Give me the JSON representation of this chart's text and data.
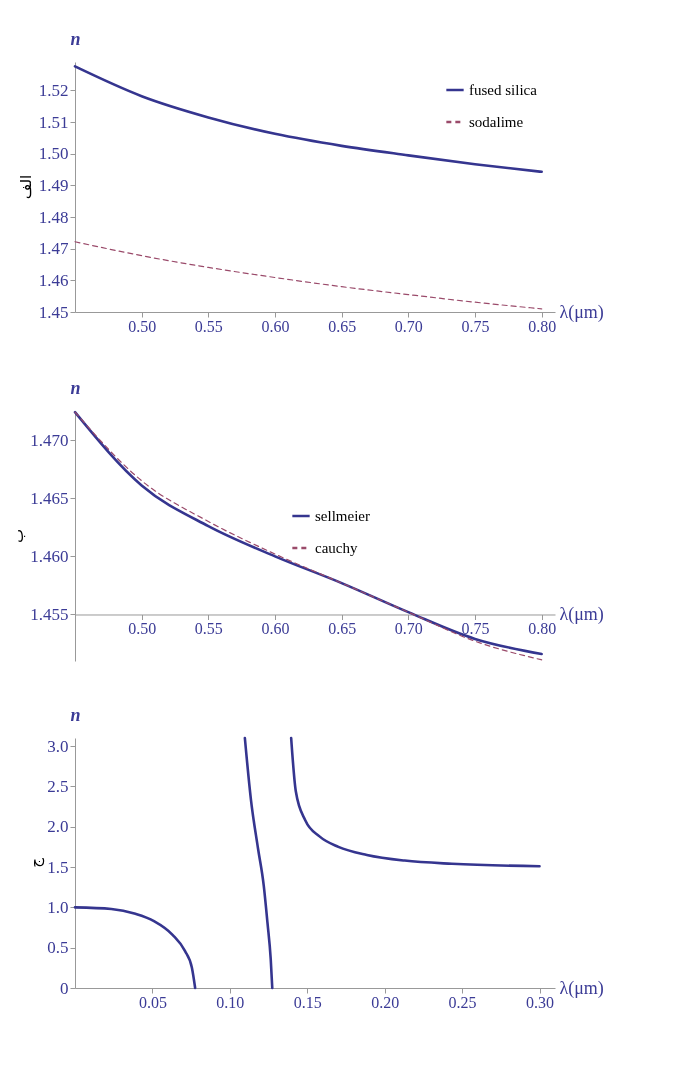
{
  "chart_data": [
    {
      "type": "line",
      "title": "الف",
      "xlabel": "λ(μm)",
      "ylabel": "n",
      "legend": "top right",
      "grid": false,
      "xlim": [
        0.45,
        0.81
      ],
      "ylim": [
        1.45,
        1.529
      ],
      "xticks": [
        {
          "value": 0.5,
          "label": "0.50"
        },
        {
          "value": 0.55,
          "label": "0.55"
        },
        {
          "value": 0.6,
          "label": "0.60"
        },
        {
          "value": 0.65,
          "label": "0.65"
        },
        {
          "value": 0.7,
          "label": "0.70"
        },
        {
          "value": 0.75,
          "label": "0.75"
        },
        {
          "value": 0.8,
          "label": "0.80"
        }
      ],
      "yticks": [
        {
          "value": 1.45,
          "label": "1.45"
        },
        {
          "value": 1.46,
          "label": "1.46"
        },
        {
          "value": 1.47,
          "label": "1.47"
        },
        {
          "value": 1.48,
          "label": "1.48"
        },
        {
          "value": 1.49,
          "label": "1.49"
        },
        {
          "value": 1.5,
          "label": "1.50"
        },
        {
          "value": 1.51,
          "label": "1.51"
        },
        {
          "value": 1.52,
          "label": "1.52"
        }
      ],
      "series": [
        {
          "name": "fused silica",
          "color": "#35358f",
          "line_style": "solid",
          "x": [
            0.45,
            0.5,
            0.55,
            0.6,
            0.65,
            0.7,
            0.75,
            0.8
          ],
          "values": [
            1.5276,
            1.5182,
            1.5115,
            1.5063,
            1.5025,
            1.4995,
            1.4967,
            1.4943
          ]
        },
        {
          "name": "sodalime",
          "color": "#9a4a6a",
          "line_style": "dashed",
          "x": [
            0.45,
            0.5,
            0.55,
            0.6,
            0.65,
            0.7,
            0.75,
            0.8
          ],
          "values": [
            1.4722,
            1.4678,
            1.4641,
            1.4609,
            1.458,
            1.4555,
            1.4531,
            1.451
          ]
        }
      ]
    },
    {
      "type": "line",
      "title": "ب",
      "xlabel": "λ(μm)",
      "ylabel": "n",
      "legend": "center",
      "grid": false,
      "xlim": [
        0.45,
        0.81
      ],
      "ylim": [
        1.451,
        1.4725
      ],
      "xticks": [
        {
          "value": 0.5,
          "label": "0.50"
        },
        {
          "value": 0.55,
          "label": "0.55"
        },
        {
          "value": 0.6,
          "label": "0.60"
        },
        {
          "value": 0.65,
          "label": "0.65"
        },
        {
          "value": 0.7,
          "label": "0.70"
        },
        {
          "value": 0.75,
          "label": "0.75"
        },
        {
          "value": 0.8,
          "label": "0.80"
        }
      ],
      "yticks": [
        {
          "value": 1.455,
          "label": "1.455"
        },
        {
          "value": 1.46,
          "label": "1.460"
        },
        {
          "value": 1.465,
          "label": "1.465"
        },
        {
          "value": 1.47,
          "label": "1.470"
        }
      ],
      "series": [
        {
          "name": "sellmeier",
          "color": "#35358f",
          "line_style": "solid",
          "x": [
            0.45,
            0.5,
            0.55,
            0.6,
            0.65,
            0.7,
            0.75,
            0.8
          ],
          "values": [
            1.4724,
            1.4661,
            1.4626,
            1.46,
            1.4577,
            1.4552,
            1.4529,
            1.4516
          ]
        },
        {
          "name": "cauchy",
          "color": "#9a4a6a",
          "line_style": "dashed",
          "x": [
            0.45,
            0.5,
            0.55,
            0.6,
            0.65,
            0.7,
            0.75,
            0.8
          ],
          "values": [
            1.4724,
            1.4665,
            1.463,
            1.4602,
            1.4577,
            1.4552,
            1.4527,
            1.4511
          ]
        }
      ]
    },
    {
      "type": "line",
      "title": "ج",
      "xlabel": "λ(μm)",
      "ylabel": "n",
      "grid": false,
      "xlim": [
        0,
        0.31
      ],
      "ylim": [
        0,
        3.1
      ],
      "xticks": [
        {
          "value": 0.05,
          "label": "0.05"
        },
        {
          "value": 0.1,
          "label": "0.10"
        },
        {
          "value": 0.15,
          "label": "0.15"
        },
        {
          "value": 0.2,
          "label": "0.20"
        },
        {
          "value": 0.25,
          "label": "0.25"
        },
        {
          "value": 0.3,
          "label": "0.30"
        }
      ],
      "yticks": [
        {
          "value": 0,
          "label": "0"
        },
        {
          "value": 0.5,
          "label": "0.5"
        },
        {
          "value": 1,
          "label": "1.0"
        },
        {
          "value": 1.5,
          "label": "1.5"
        },
        {
          "value": 2,
          "label": "2.0"
        },
        {
          "value": 2.5,
          "label": "2.5"
        },
        {
          "value": 3,
          "label": "3.0"
        }
      ],
      "series": [
        {
          "color": "#35358f",
          "line_style": "solid",
          "x": [
            0,
            0.0235,
            0.039,
            0.051,
            0.063,
            0.071,
            0.0755,
            0.0776
          ],
          "values": [
            1.0,
            0.98,
            0.92,
            0.83,
            0.66,
            0.46,
            0.25,
            0
          ]
        },
        {
          "color": "#35358f",
          "line_style": "solid",
          "x": [
            0.1097,
            0.1136,
            0.1182,
            0.1219,
            0.1243,
            0.1264,
            0.1274
          ],
          "values": [
            3.1,
            2.34,
            1.73,
            1.27,
            0.81,
            0.36,
            0
          ]
        },
        {
          "color": "#35358f",
          "line_style": "solid",
          "x": [
            0.1396,
            0.1426,
            0.1487,
            0.1579,
            0.1701,
            0.1885,
            0.2129,
            0.2434,
            0.3
          ],
          "values": [
            3.1,
            2.44,
            2.08,
            1.88,
            1.75,
            1.65,
            1.58,
            1.54,
            1.51
          ]
        }
      ]
    }
  ]
}
